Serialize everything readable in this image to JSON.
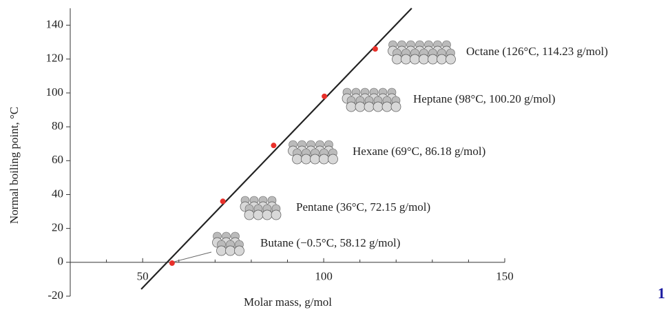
{
  "chart_data": {
    "type": "scatter",
    "x": [
      58.12,
      72.15,
      86.18,
      100.2,
      114.23
    ],
    "values": [
      -0.5,
      36,
      69,
      98,
      126
    ],
    "color": "#e8302a",
    "point_labels": [
      "Butane (−0.5°C, 58.12 g/mol)",
      "Pentane (36°C, 72.15 g/mol)",
      "Hexane (69°C, 86.18 g/mol)",
      "Heptane (98°C, 100.20 g/mol)",
      "Octane (126°C, 114.23 g/mol)"
    ],
    "fit_line": {
      "x": [
        49.6,
        124.3
      ],
      "y": [
        -15.9,
        150
      ],
      "color": "#222222"
    },
    "xlabel": "Molar mass, g/mol",
    "ylabel": "Normal boiling point, °C",
    "xlim": [
      30,
      150
    ],
    "ylim": [
      -20,
      150
    ],
    "xticks": [
      50,
      100,
      150
    ],
    "xminorticks": [
      40,
      60,
      70,
      80,
      90,
      110,
      120,
      130,
      140
    ],
    "yticks": [
      -20,
      0,
      20,
      40,
      60,
      80,
      100,
      120,
      140
    ]
  },
  "footer_fragment": "1"
}
